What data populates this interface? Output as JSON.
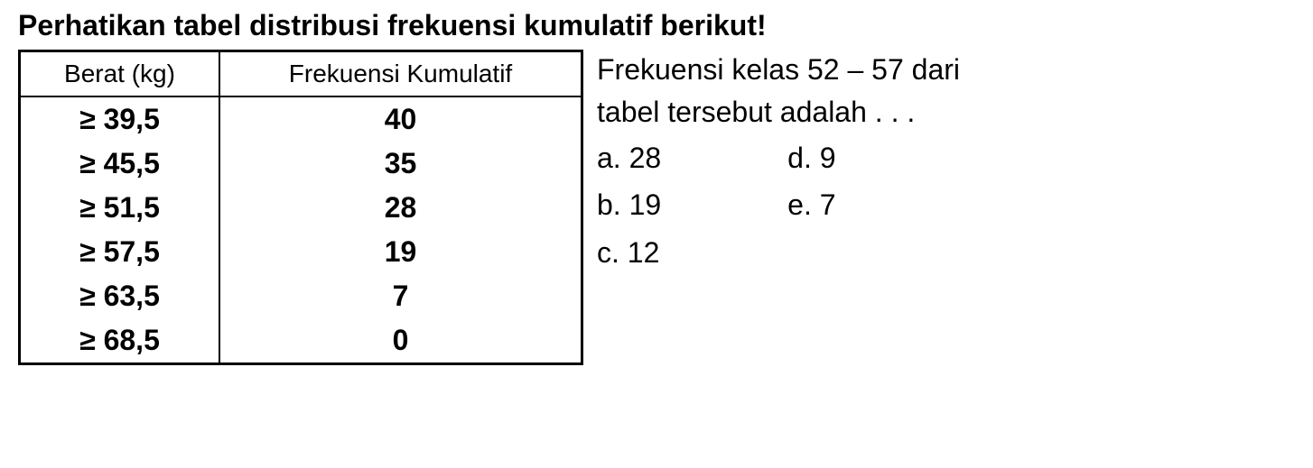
{
  "title": "Perhatikan tabel distribusi frekuensi kumulatif berikut!",
  "table": {
    "columns": [
      "Berat (kg)",
      "Frekuensi Kumulatif"
    ],
    "rows": [
      [
        "≥ 39,5",
        "40"
      ],
      [
        "≥ 45,5",
        "35"
      ],
      [
        "≥ 51,5",
        "28"
      ],
      [
        "≥ 57,5",
        "19"
      ],
      [
        "≥ 63,5",
        "7"
      ],
      [
        "≥ 68,5",
        "0"
      ]
    ],
    "border_color": "#000000",
    "header_fontsize": 28,
    "cell_fontsize": 32,
    "col1_width": 220,
    "col2_width": 400
  },
  "question": {
    "line1": "Frekuensi kelas 52 – 57 dari",
    "line2": "tabel tersebut adalah . . ."
  },
  "options": {
    "left": [
      {
        "label": "a. 28"
      },
      {
        "label": "b. 19"
      },
      {
        "label": "c. 12"
      }
    ],
    "right": [
      {
        "label": "d. 9"
      },
      {
        "label": "e. 7"
      }
    ]
  },
  "colors": {
    "text": "#000000",
    "background": "#ffffff",
    "border": "#000000"
  },
  "typography": {
    "title_fontsize": 32,
    "title_weight": "bold",
    "body_fontsize": 32,
    "font_family": "Arial"
  }
}
